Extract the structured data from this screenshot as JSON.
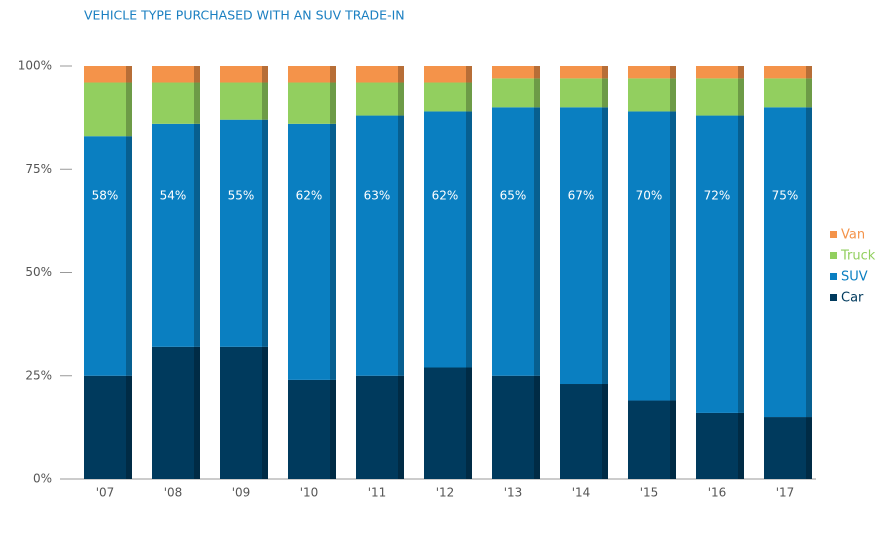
{
  "chart_data": {
    "type": "stacked_bar",
    "title": "VEHICLE TYPE PURCHASED WITH AN SUV TRADE-IN",
    "categories": [
      "'07",
      "'08",
      "'09",
      "'10",
      "'11",
      "'12",
      "'13",
      "'14",
      "'15",
      "'16",
      "'17"
    ],
    "series": [
      {
        "name": "Car",
        "color": "#003a5d",
        "values": [
          25,
          32,
          32,
          24,
          25,
          27,
          25,
          23,
          19,
          16,
          15
        ]
      },
      {
        "name": "SUV",
        "color": "#0a7fc1",
        "values": [
          58,
          54,
          55,
          62,
          63,
          62,
          65,
          67,
          70,
          72,
          75
        ],
        "value_labels": [
          "58%",
          "54%",
          "55%",
          "62%",
          "63%",
          "62%",
          "65%",
          "67%",
          "70%",
          "72%",
          "75%"
        ]
      },
      {
        "name": "Truck",
        "color": "#92cf5f",
        "values": [
          13,
          10,
          9,
          10,
          8,
          7,
          7,
          7,
          8,
          9,
          7
        ]
      },
      {
        "name": "Van",
        "color": "#f4934a",
        "values": [
          4,
          4,
          4,
          4,
          4,
          4,
          3,
          3,
          3,
          3,
          3
        ]
      }
    ],
    "ylim": [
      0,
      100
    ],
    "yticks": [
      {
        "value": 0,
        "label": "0%"
      },
      {
        "value": 25,
        "label": "25%"
      },
      {
        "value": 50,
        "label": "50%"
      },
      {
        "value": 75,
        "label": "75%"
      },
      {
        "value": 100,
        "label": "100%"
      }
    ],
    "legend": "right"
  }
}
